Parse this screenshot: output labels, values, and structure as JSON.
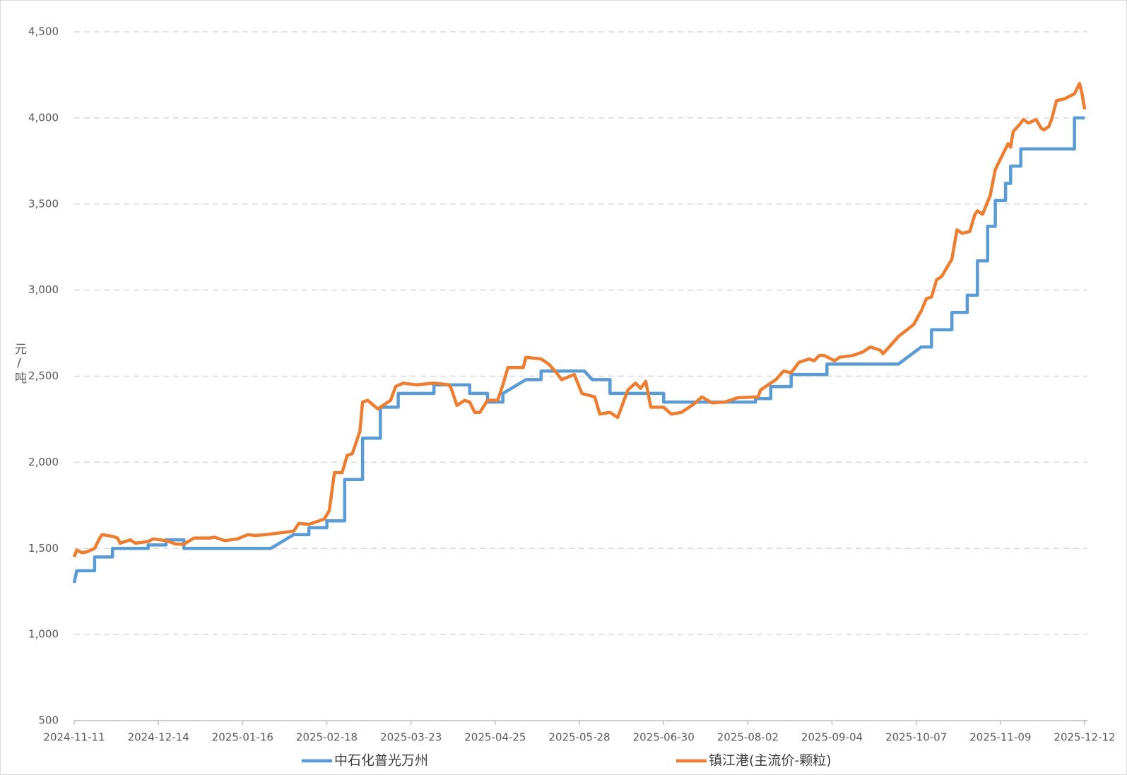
{
  "chart_data": {
    "type": "line",
    "y_label": "元/吨",
    "ylim": [
      500,
      4500
    ],
    "yticks": [
      500,
      {
        "value": 1000,
        "label": "1,000"
      },
      {
        "value": 1500,
        "label": "1,500"
      },
      {
        "value": 2000,
        "label": "2,000"
      },
      {
        "value": 2500,
        "label": "2,500"
      },
      {
        "value": 3000,
        "label": "3,000"
      },
      {
        "value": 3500,
        "label": "3,500"
      },
      {
        "value": 4000,
        "label": "4,000"
      },
      {
        "value": 4500,
        "label": "4,500"
      }
    ],
    "xlim": [
      "2024-11-11",
      "2025-12-12"
    ],
    "xticks": [
      "2024-11-11",
      "2024-12-14",
      "2025-01-16",
      "2025-02-18",
      "2025-03-23",
      "2025-04-25",
      "2025-05-28",
      "2025-06-30",
      "2025-08-02",
      "2025-09-04",
      "2025-10-07",
      "2025-11-09",
      "2025-12-12"
    ],
    "grid": true,
    "legend": "bottom",
    "series": [
      {
        "name": "中石化普光万州",
        "color": "#5b9bd5",
        "x": [
          "2024-11-11",
          "2024-11-12",
          "2024-11-19",
          "2024-11-19",
          "2024-11-26",
          "2024-11-26",
          "2024-12-10",
          "2024-12-10",
          "2024-12-17",
          "2024-12-17",
          "2024-12-24",
          "2024-12-24",
          "2025-01-27",
          "2025-02-05",
          "2025-02-11",
          "2025-02-11",
          "2025-02-18",
          "2025-02-18",
          "2025-02-25",
          "2025-02-25",
          "2025-03-04",
          "2025-03-04",
          "2025-03-11",
          "2025-03-11",
          "2025-03-18",
          "2025-03-18",
          "2025-04-01",
          "2025-04-01",
          "2025-04-15",
          "2025-04-15",
          "2025-04-22",
          "2025-04-22",
          "2025-04-28",
          "2025-04-28",
          "2025-05-07",
          "2025-05-13",
          "2025-05-13",
          "2025-05-30",
          "2025-06-02",
          "2025-06-09",
          "2025-06-09",
          "2025-06-30",
          "2025-06-30",
          "2025-08-05",
          "2025-08-05",
          "2025-08-11",
          "2025-08-11",
          "2025-08-19",
          "2025-08-19",
          "2025-09-02",
          "2025-09-02",
          "2025-09-30",
          "2025-10-09",
          "2025-10-13",
          "2025-10-13",
          "2025-10-21",
          "2025-10-21",
          "2025-10-27",
          "2025-10-27",
          "2025-10-31",
          "2025-10-31",
          "2025-11-04",
          "2025-11-04",
          "2025-11-07",
          "2025-11-07",
          "2025-11-11",
          "2025-11-11",
          "2025-11-13",
          "2025-11-13",
          "2025-11-17",
          "2025-11-17",
          "2025-12-08",
          "2025-12-08",
          "2025-12-12"
        ],
        "values": [
          1300,
          1370,
          1370,
          1450,
          1450,
          1500,
          1500,
          1520,
          1520,
          1550,
          1550,
          1500,
          1500,
          1580,
          1580,
          1620,
          1620,
          1660,
          1660,
          1900,
          1900,
          2140,
          2140,
          2320,
          2320,
          2400,
          2400,
          2450,
          2450,
          2400,
          2400,
          2350,
          2350,
          2400,
          2480,
          2480,
          2530,
          2530,
          2480,
          2480,
          2400,
          2400,
          2350,
          2350,
          2370,
          2370,
          2440,
          2440,
          2510,
          2510,
          2570,
          2570,
          2670,
          2670,
          2770,
          2770,
          2870,
          2870,
          2970,
          2970,
          3170,
          3170,
          3370,
          3370,
          3520,
          3520,
          3620,
          3620,
          3720,
          3720,
          3820,
          3820,
          4000,
          4000
        ]
      },
      {
        "name": "镇江港(主流价-颗粒)",
        "color": "#ed7d31",
        "x": [
          "2024-11-11",
          "2024-11-12",
          "2024-11-14",
          "2024-11-16",
          "2024-11-19",
          "2024-11-21",
          "2024-11-22",
          "2024-11-26",
          "2024-11-28",
          "2024-11-29",
          "2024-12-03",
          "2024-12-05",
          "2024-12-10",
          "2024-12-12",
          "2024-12-17",
          "2024-12-21",
          "2024-12-24",
          "2024-12-28",
          "2025-01-03",
          "2025-01-05",
          "2025-01-09",
          "2025-01-14",
          "2025-01-18",
          "2025-01-21",
          "2025-01-25",
          "2025-02-05",
          "2025-02-07",
          "2025-02-11",
          "2025-02-17",
          "2025-02-19",
          "2025-02-21",
          "2025-02-24",
          "2025-02-26",
          "2025-02-28",
          "2025-03-03",
          "2025-03-04",
          "2025-03-06",
          "2025-03-10",
          "2025-03-13",
          "2025-03-15",
          "2025-03-17",
          "2025-03-20",
          "2025-03-25",
          "2025-04-01",
          "2025-04-07",
          "2025-04-08",
          "2025-04-10",
          "2025-04-13",
          "2025-04-15",
          "2025-04-17",
          "2025-04-19",
          "2025-04-22",
          "2025-04-26",
          "2025-04-28",
          "2025-04-30",
          "2025-05-06",
          "2025-05-07",
          "2025-05-13",
          "2025-05-16",
          "2025-05-19",
          "2025-05-21",
          "2025-05-26",
          "2025-05-29",
          "2025-06-03",
          "2025-06-05",
          "2025-06-09",
          "2025-06-12",
          "2025-06-16",
          "2025-06-19",
          "2025-06-21",
          "2025-06-23",
          "2025-06-25",
          "2025-06-30",
          "2025-07-03",
          "2025-07-07",
          "2025-07-12",
          "2025-07-15",
          "2025-07-19",
          "2025-07-24",
          "2025-07-29",
          "2025-08-06",
          "2025-08-07",
          "2025-08-13",
          "2025-08-16",
          "2025-08-19",
          "2025-08-22",
          "2025-08-26",
          "2025-08-28",
          "2025-08-30",
          "2025-09-01",
          "2025-09-05",
          "2025-09-07",
          "2025-09-12",
          "2025-09-16",
          "2025-09-19",
          "2025-09-23",
          "2025-09-24",
          "2025-09-27",
          "2025-09-30",
          "2025-10-06",
          "2025-10-09",
          "2025-10-11",
          "2025-10-13",
          "2025-10-15",
          "2025-10-17",
          "2025-10-21",
          "2025-10-23",
          "2025-10-25",
          "2025-10-28",
          "2025-10-30",
          "2025-10-31",
          "2025-11-02",
          "2025-11-05",
          "2025-11-07",
          "2025-11-10",
          "2025-11-12",
          "2025-11-13",
          "2025-11-14",
          "2025-11-17",
          "2025-11-18",
          "2025-11-20",
          "2025-11-23",
          "2025-11-25",
          "2025-11-26",
          "2025-11-28",
          "2025-11-29",
          "2025-12-01",
          "2025-12-04",
          "2025-12-08",
          "2025-12-10",
          "2025-12-11",
          "2025-12-12"
        ],
        "values": [
          1450,
          1490,
          1475,
          1480,
          1500,
          1560,
          1580,
          1570,
          1560,
          1530,
          1550,
          1530,
          1540,
          1555,
          1545,
          1525,
          1525,
          1560,
          1560,
          1565,
          1545,
          1555,
          1580,
          1575,
          1580,
          1600,
          1645,
          1640,
          1670,
          1720,
          1940,
          1940,
          2040,
          2050,
          2180,
          2350,
          2360,
          2310,
          2340,
          2360,
          2440,
          2460,
          2450,
          2460,
          2450,
          2420,
          2330,
          2360,
          2350,
          2290,
          2290,
          2360,
          2360,
          2450,
          2550,
          2550,
          2610,
          2600,
          2570,
          2520,
          2480,
          2510,
          2400,
          2380,
          2280,
          2290,
          2260,
          2420,
          2460,
          2430,
          2470,
          2320,
          2320,
          2280,
          2290,
          2340,
          2380,
          2345,
          2350,
          2375,
          2380,
          2420,
          2480,
          2530,
          2520,
          2580,
          2600,
          2590,
          2620,
          2620,
          2590,
          2610,
          2620,
          2640,
          2670,
          2650,
          2630,
          2680,
          2730,
          2800,
          2880,
          2950,
          2960,
          3060,
          3080,
          3180,
          3350,
          3330,
          3340,
          3440,
          3460,
          3440,
          3550,
          3700,
          3790,
          3850,
          3830,
          3920,
          3970,
          3990,
          3970,
          3990,
          3940,
          3930,
          3950,
          3990,
          4100,
          4110,
          4140,
          4200,
          4140,
          4050
        ]
      }
    ]
  }
}
